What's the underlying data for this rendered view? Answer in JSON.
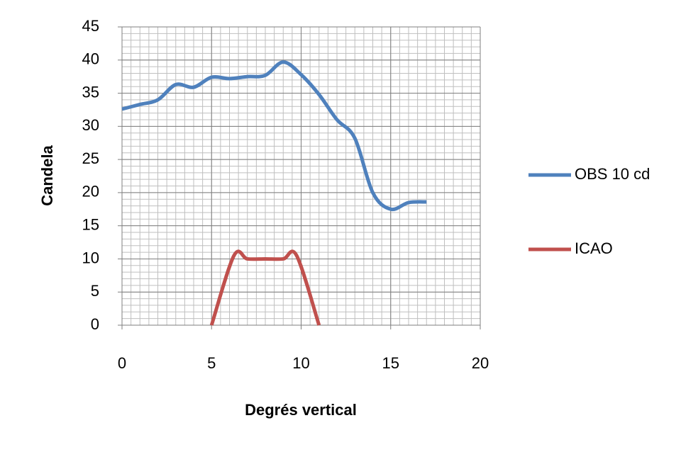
{
  "chart_data": {
    "type": "line",
    "xlabel": "Degrés vertical",
    "ylabel": "Candela",
    "series": [
      {
        "name": "OBS 10 cd",
        "color": "#4f81bd",
        "x": [
          0,
          1,
          2,
          3,
          4,
          5,
          6,
          7,
          8,
          9,
          10,
          11,
          12,
          13,
          14,
          15,
          16,
          17
        ],
        "values": [
          32.6,
          33.3,
          34.0,
          36.3,
          35.9,
          37.4,
          37.2,
          37.5,
          37.7,
          39.7,
          37.8,
          34.8,
          31.0,
          28.2,
          20.0,
          17.5,
          18.5,
          18.6
        ]
      },
      {
        "name": "ICAO",
        "color": "#c0504d",
        "x": [
          5,
          6.25,
          7,
          8,
          9,
          9.75,
          11
        ],
        "values": [
          0,
          10.5,
          10,
          10,
          10,
          10.5,
          0
        ]
      }
    ],
    "xlim": [
      0,
      20
    ],
    "xticks": [
      0,
      5,
      10,
      15,
      20
    ],
    "ylim": [
      0,
      45
    ],
    "yticks": [
      0,
      5,
      10,
      15,
      20,
      25,
      30,
      35,
      40,
      45
    ],
    "grid": true,
    "minor_xstep": 0.5,
    "minor_ystep": 1,
    "legend": "right"
  }
}
